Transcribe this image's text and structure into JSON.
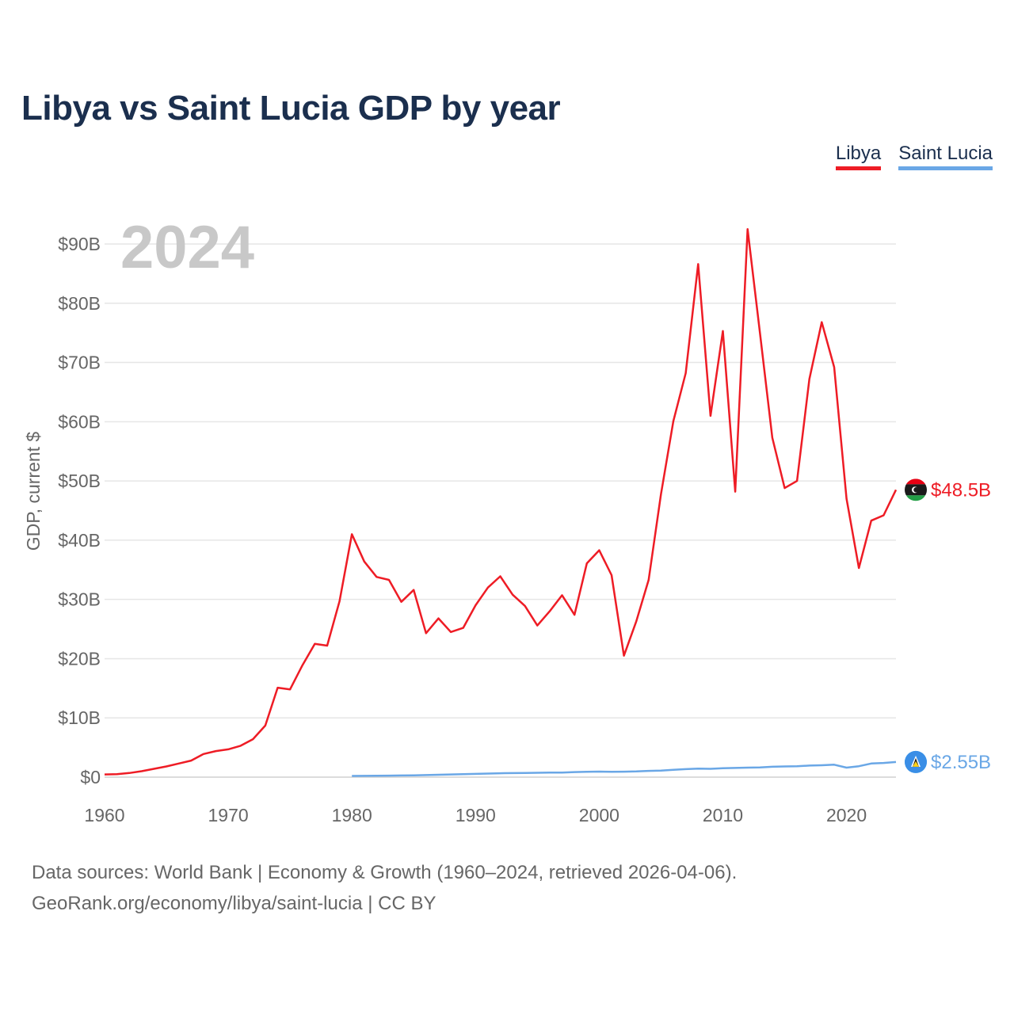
{
  "title": "Libya vs Saint Lucia GDP by year",
  "legend": [
    {
      "label": "Libya",
      "color": "#ee1c25"
    },
    {
      "label": "Saint Lucia",
      "color": "#6aa7e6"
    }
  ],
  "source": {
    "line1": "Data sources: World Bank | Economy & Growth (1960–2024, retrieved 2026-04-06).",
    "line2": "GeoRank.org/economy/libya/saint-lucia | CC BY"
  },
  "chart_data": {
    "type": "line",
    "title": "Libya vs Saint Lucia GDP by year",
    "year_label": "2024",
    "ylabel": "GDP, current $",
    "xlabel": "",
    "xlim": [
      1960,
      2024
    ],
    "ylim": [
      0,
      90
    ],
    "x_ticks": [
      1960,
      1970,
      1980,
      1990,
      2000,
      2010,
      2020
    ],
    "x_tick_labels": [
      "1960",
      "1970",
      "1980",
      "1990",
      "2000",
      "2010",
      "2020"
    ],
    "y_ticks": [
      0,
      10,
      20,
      30,
      40,
      50,
      60,
      70,
      80,
      90
    ],
    "y_tick_labels": [
      "$0",
      "$10B",
      "$20B",
      "$30B",
      "$40B",
      "$50B",
      "$60B",
      "$70B",
      "$80B",
      "$90B"
    ],
    "grid": true,
    "series": [
      {
        "name": "Libya",
        "color": "#ee1c25",
        "end_label": "$48.5B",
        "flag_icon": "libya-flag-icon",
        "x": [
          1960,
          1961,
          1962,
          1963,
          1964,
          1965,
          1966,
          1967,
          1968,
          1969,
          1970,
          1971,
          1972,
          1973,
          1974,
          1975,
          1976,
          1977,
          1978,
          1979,
          1980,
          1981,
          1982,
          1983,
          1984,
          1985,
          1986,
          1987,
          1988,
          1989,
          1990,
          1991,
          1992,
          1993,
          1994,
          1995,
          1996,
          1997,
          1998,
          1999,
          2000,
          2001,
          2002,
          2003,
          2004,
          2005,
          2006,
          2007,
          2008,
          2009,
          2010,
          2011,
          2012,
          2013,
          2014,
          2015,
          2016,
          2017,
          2018,
          2019,
          2020,
          2021,
          2022,
          2023,
          2024
        ],
        "values": [
          0.45,
          0.5,
          0.7,
          1.0,
          1.4,
          1.8,
          2.3,
          2.8,
          3.9,
          4.4,
          4.7,
          5.3,
          6.4,
          8.7,
          15.1,
          14.8,
          18.9,
          22.5,
          22.2,
          29.7,
          41.0,
          36.4,
          33.8,
          33.3,
          29.6,
          31.6,
          24.3,
          26.8,
          24.5,
          25.2,
          29.0,
          32.0,
          33.9,
          30.8,
          28.9,
          25.6,
          28.0,
          30.7,
          27.4,
          36.1,
          38.3,
          34.1,
          20.5,
          26.3,
          33.3,
          47.8,
          60.1,
          68.2,
          86.6,
          61.0,
          75.3,
          48.2,
          92.5,
          75.0,
          57.3,
          48.8,
          50.0,
          67.2,
          76.8,
          69.2,
          47.0,
          35.3,
          43.3,
          44.2,
          48.5
        ]
      },
      {
        "name": "Saint Lucia",
        "color": "#6aa7e6",
        "end_label": "$2.55B",
        "flag_icon": "saint-lucia-flag-icon",
        "x": [
          1980,
          1981,
          1982,
          1983,
          1984,
          1985,
          1986,
          1987,
          1988,
          1989,
          1990,
          1991,
          1992,
          1993,
          1994,
          1995,
          1996,
          1997,
          1998,
          1999,
          2000,
          2001,
          2002,
          2003,
          2004,
          2005,
          2006,
          2007,
          2008,
          2009,
          2010,
          2011,
          2012,
          2013,
          2014,
          2015,
          2016,
          2017,
          2018,
          2019,
          2020,
          2021,
          2022,
          2023,
          2024
        ],
        "values": [
          0.2,
          0.22,
          0.24,
          0.26,
          0.28,
          0.3,
          0.35,
          0.4,
          0.45,
          0.5,
          0.55,
          0.6,
          0.65,
          0.68,
          0.7,
          0.74,
          0.76,
          0.78,
          0.85,
          0.9,
          0.93,
          0.9,
          0.92,
          0.96,
          1.05,
          1.1,
          1.25,
          1.35,
          1.45,
          1.4,
          1.5,
          1.55,
          1.6,
          1.65,
          1.75,
          1.8,
          1.85,
          1.95,
          2.0,
          2.1,
          1.6,
          1.85,
          2.3,
          2.4,
          2.55
        ]
      }
    ]
  }
}
